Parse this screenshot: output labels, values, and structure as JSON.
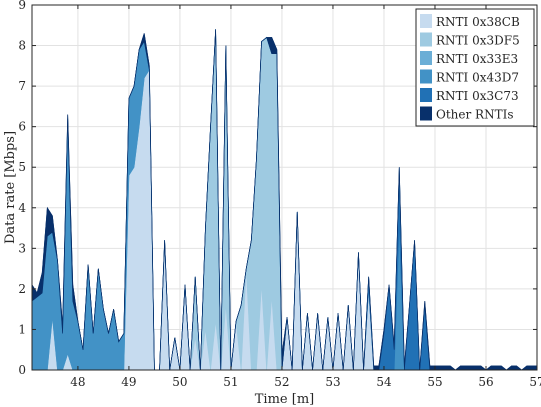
{
  "chart_data": {
    "type": "area",
    "stacked": true,
    "xlabel": "Time [m]",
    "ylabel": "Data rate [Mbps]",
    "xlim": [
      47.1,
      57
    ],
    "ylim": [
      0,
      9
    ],
    "xticks": [
      48,
      49,
      50,
      51,
      52,
      53,
      54,
      55,
      56,
      57
    ],
    "xtick_labels": [
      "48",
      "49",
      "50",
      "51",
      "52",
      "53",
      "54",
      "55",
      "56",
      "57"
    ],
    "yticks": [
      0,
      1,
      2,
      3,
      4,
      5,
      6,
      7,
      8,
      9
    ],
    "ytick_labels": [
      "0",
      "1",
      "2",
      "3",
      "4",
      "5",
      "6",
      "7",
      "8",
      "9"
    ],
    "grid": true,
    "legend_position": "top-right",
    "x": [
      47.1,
      47.2,
      47.3,
      47.4,
      47.5,
      47.6,
      47.7,
      47.8,
      47.9,
      48.0,
      48.1,
      48.2,
      48.3,
      48.4,
      48.5,
      48.6,
      48.7,
      48.8,
      48.9,
      49.0,
      49.1,
      49.2,
      49.3,
      49.4,
      49.5,
      49.6,
      49.7,
      49.8,
      49.9,
      50.0,
      50.1,
      50.2,
      50.3,
      50.4,
      50.5,
      50.6,
      50.7,
      50.8,
      50.9,
      51.0,
      51.1,
      51.2,
      51.3,
      51.4,
      51.5,
      51.6,
      51.7,
      51.8,
      51.9,
      52.0,
      52.1,
      52.2,
      52.3,
      52.4,
      52.5,
      52.6,
      52.7,
      52.8,
      52.9,
      53.0,
      53.1,
      53.2,
      53.3,
      53.4,
      53.5,
      53.6,
      53.7,
      53.8,
      53.9,
      54.0,
      54.1,
      54.2,
      54.3,
      54.4,
      54.5,
      54.6,
      54.7,
      54.8,
      54.9,
      55.0,
      55.1,
      55.2,
      55.3,
      55.4,
      55.5,
      55.6,
      55.7,
      55.8,
      55.9,
      56.0,
      56.1,
      56.2,
      56.3,
      56.4,
      56.5,
      56.6,
      56.7,
      56.8,
      56.9,
      57.0
    ],
    "series": [
      {
        "name": "RNTI 0x38CB",
        "color": "#c6dbef",
        "values": [
          0,
          0,
          0,
          0,
          1.3,
          0,
          0,
          0.4,
          0,
          0,
          0,
          0,
          0,
          0,
          0,
          0,
          0,
          0,
          0,
          4.8,
          5.0,
          6.0,
          7.2,
          7.4,
          0,
          0,
          3.2,
          0,
          0.8,
          0,
          2.1,
          0,
          0.8,
          0,
          1.0,
          0,
          1.2,
          0,
          1.6,
          0,
          1.2,
          0,
          2.5,
          0,
          0,
          2.1,
          0,
          1.8,
          0,
          0,
          1.3,
          0,
          3.9,
          0,
          1.4,
          0,
          1.4,
          0,
          1.3,
          0,
          1.4,
          0,
          1.6,
          0,
          2.9,
          0,
          2.0,
          0,
          0,
          0,
          0,
          0,
          0,
          0,
          0,
          0,
          0,
          0,
          0,
          0,
          0,
          0,
          0,
          0,
          0,
          0,
          0,
          0,
          0,
          0,
          0,
          0,
          0,
          0,
          0,
          0,
          0,
          0,
          0,
          0
        ]
      },
      {
        "name": "RNTI 0x3DF5",
        "color": "#9ecae1",
        "values": [
          0,
          0,
          0,
          0,
          0,
          0,
          0,
          0,
          0,
          0,
          0,
          0,
          0,
          0,
          0,
          0,
          0,
          0,
          0,
          0,
          0,
          0,
          0,
          0,
          0,
          0,
          0,
          0,
          0,
          0,
          0,
          0,
          1.5,
          0,
          2.5,
          6.0,
          7.2,
          0,
          6.4,
          0,
          0,
          1.6,
          0,
          3.2,
          5.2,
          6.0,
          8.2,
          6.0,
          7.8,
          0,
          0,
          0,
          0,
          0,
          0,
          0,
          0,
          0,
          0,
          0,
          0,
          0,
          0,
          0,
          0,
          0,
          0,
          0,
          0,
          0,
          0,
          0,
          0,
          0,
          0,
          0,
          0,
          0,
          0,
          0,
          0,
          0,
          0,
          0,
          0,
          0,
          0,
          0,
          0,
          0,
          0,
          0,
          0,
          0,
          0,
          0,
          0,
          0,
          0,
          0
        ]
      },
      {
        "name": "RNTI 0x33E3",
        "color": "#6baed6",
        "values": [
          0,
          0,
          0,
          0,
          0,
          0,
          0,
          0,
          0,
          0,
          0,
          0,
          0,
          0,
          0,
          0,
          0,
          0,
          0,
          0,
          0,
          0,
          0,
          0,
          0,
          0,
          0,
          0,
          0,
          0,
          0,
          0,
          0,
          0,
          0,
          0,
          0,
          0,
          0,
          0,
          0,
          0,
          0,
          0,
          0,
          0,
          0,
          0,
          0,
          0,
          0,
          0,
          0,
          0,
          0,
          0,
          0,
          0,
          0,
          0,
          0,
          0,
          0,
          0,
          0,
          0,
          0,
          0,
          0,
          0,
          0,
          0,
          0,
          0,
          0,
          0,
          0,
          0,
          0,
          0,
          0,
          0,
          0,
          0,
          0,
          0,
          0,
          0,
          0,
          0,
          0,
          0,
          0,
          0,
          0,
          0,
          0,
          0,
          0,
          0
        ]
      },
      {
        "name": "RNTI 0x43D7",
        "color": "#4292c6",
        "values": [
          1.7,
          1.8,
          1.9,
          3.3,
          2.1,
          2.7,
          0.9,
          5.8,
          1.7,
          1.2,
          0.5,
          2.6,
          0.9,
          2.5,
          1.5,
          0.9,
          1.5,
          0.7,
          0.9,
          1.9,
          2.0,
          1.9,
          0.9,
          0,
          0,
          0,
          0,
          0,
          0,
          0,
          0,
          0,
          0,
          0,
          0,
          0,
          0,
          0,
          0,
          0,
          0,
          0,
          0,
          0,
          0,
          0,
          0,
          0,
          0,
          0,
          0,
          0,
          0,
          0,
          0,
          0,
          0,
          0,
          0,
          0,
          0,
          0,
          0,
          0,
          0,
          0,
          0,
          0,
          0,
          0,
          0,
          0,
          3.6,
          0,
          0,
          0,
          0,
          0,
          0,
          0,
          0,
          0,
          0,
          0,
          0,
          0,
          0,
          0,
          0,
          0,
          0,
          0,
          0,
          0,
          0,
          0,
          0,
          0,
          0,
          0
        ]
      },
      {
        "name": "RNTI 0x3C73",
        "color": "#2171b5",
        "values": [
          0,
          0,
          0,
          0,
          0,
          0,
          0,
          0,
          0,
          0,
          0,
          0,
          0,
          0,
          0,
          0,
          0,
          0,
          0,
          0,
          0,
          0,
          0,
          0,
          0,
          0,
          0,
          0,
          0,
          0,
          0,
          0,
          0,
          0,
          0,
          0,
          0,
          0,
          0,
          0,
          0,
          0,
          0,
          0,
          0,
          0,
          0,
          0,
          0,
          0,
          0,
          0,
          0,
          0,
          0,
          0,
          0,
          0,
          0,
          0,
          0,
          0,
          0,
          0,
          0,
          0,
          0.3,
          0,
          0,
          0.9,
          2.1,
          0.5,
          1.4,
          0,
          1.6,
          3.2,
          0,
          1.6,
          0,
          0,
          0,
          0,
          0,
          0,
          0,
          0,
          0,
          0,
          0,
          0,
          0,
          0,
          0,
          0,
          0,
          0,
          0,
          0,
          0,
          0
        ]
      },
      {
        "name": "Other RNTIs",
        "color": "#08306b",
        "values": [
          0.4,
          0.1,
          0.5,
          0.7,
          0.4,
          0,
          0.2,
          0.1,
          0.4,
          0,
          0,
          0,
          0,
          0,
          0,
          0,
          0,
          0,
          0,
          0,
          0,
          0,
          0.2,
          0.1,
          0,
          0,
          0,
          0,
          0,
          0,
          0,
          0,
          0,
          0,
          0,
          0,
          0,
          0,
          0,
          0,
          0,
          0,
          0,
          0,
          0,
          0,
          0,
          0.4,
          0.1,
          0.4,
          0,
          0,
          0,
          0,
          0,
          0,
          0,
          0,
          0,
          0,
          0,
          0,
          0,
          0,
          0,
          0,
          0,
          0.1,
          0.1,
          0.1,
          0,
          0.1,
          0,
          0.1,
          0,
          0,
          0,
          0.1,
          0.1,
          0.1,
          0.1,
          0.1,
          0.1,
          0,
          0.1,
          0.1,
          0.1,
          0.1,
          0.1,
          0,
          0.1,
          0.1,
          0.1,
          0,
          0.1,
          0.1,
          0,
          0.1,
          0.1,
          0.1
        ]
      }
    ]
  }
}
